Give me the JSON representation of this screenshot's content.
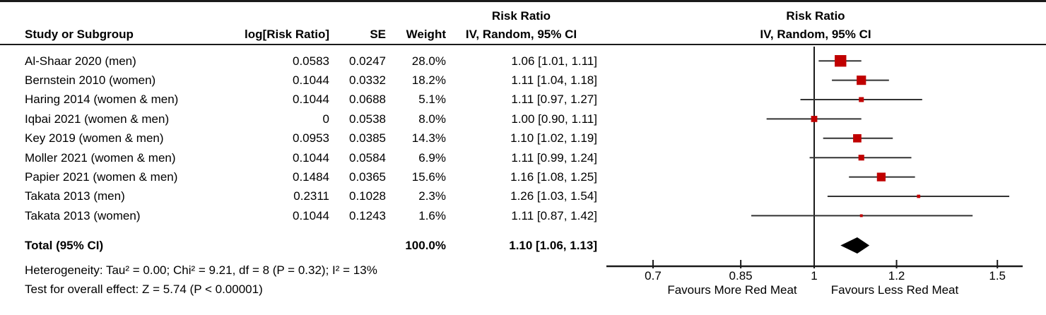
{
  "header": {
    "col_study": "Study or Subgroup",
    "col_log_rr": "log[Risk Ratio]",
    "col_se": "SE",
    "col_weight": "Weight",
    "ci_col_line1": "Risk Ratio",
    "ci_col_line2": "IV, Random, 95% CI",
    "plot_col_line1": "Risk Ratio",
    "plot_col_line2": "IV, Random, 95% CI"
  },
  "footnotes": {
    "heterogeneity": "Heterogeneity: Tau² = 0.00; Chi² = 9.21, df = 8 (P = 0.32); I² = 13%",
    "overall_effect": "Test for overall effect: Z = 5.74 (P < 0.00001)"
  },
  "chart_data": {
    "type": "forest",
    "x_scale": "log",
    "xlim": [
      0.63,
      1.59
    ],
    "null_line_value": 1,
    "axis_ticks": [
      0.7,
      0.85,
      1,
      1.2,
      1.5
    ],
    "axis_tick_labels": [
      "0.7",
      "0.85",
      "1",
      "1.2",
      "1.5"
    ],
    "favours_left": "Favours More Red Meat",
    "favours_right": "Favours Less Red Meat",
    "effect_measure": "Risk Ratio",
    "model": "IV, Random, 95% CI",
    "colors": {
      "marker": "#c00000",
      "ci_line": "#333333",
      "diamond": "#000000",
      "axis": "#1a1a1a"
    },
    "studies": [
      {
        "name": "Al-Shaar 2020 (men)",
        "log_rr": "0.0583",
        "se": "0.0247",
        "weight": "28.0%",
        "weight_pct": 28.0,
        "ci_label": "1.06 [1.01, 1.11]",
        "rr": 1.06,
        "ci_low": 1.01,
        "ci_high": 1.11
      },
      {
        "name": "Bernstein 2010 (women)",
        "log_rr": "0.1044",
        "se": "0.0332",
        "weight": "18.2%",
        "weight_pct": 18.2,
        "ci_label": "1.11 [1.04, 1.18]",
        "rr": 1.11,
        "ci_low": 1.04,
        "ci_high": 1.18
      },
      {
        "name": "Haring 2014 (women & men)",
        "log_rr": "0.1044",
        "se": "0.0688",
        "weight": "5.1%",
        "weight_pct": 5.1,
        "ci_label": "1.11 [0.97, 1.27]",
        "rr": 1.11,
        "ci_low": 0.97,
        "ci_high": 1.27
      },
      {
        "name": "Iqbai 2021 (women & men)",
        "log_rr": "0",
        "se": "0.0538",
        "weight": "8.0%",
        "weight_pct": 8.0,
        "ci_label": "1.00 [0.90, 1.11]",
        "rr": 1.0,
        "ci_low": 0.9,
        "ci_high": 1.11
      },
      {
        "name": "Key 2019 (women & men)",
        "log_rr": "0.0953",
        "se": "0.0385",
        "weight": "14.3%",
        "weight_pct": 14.3,
        "ci_label": "1.10 [1.02, 1.19]",
        "rr": 1.1,
        "ci_low": 1.02,
        "ci_high": 1.19
      },
      {
        "name": "Moller 2021 (women & men)",
        "log_rr": "0.1044",
        "se": "0.0584",
        "weight": "6.9%",
        "weight_pct": 6.9,
        "ci_label": "1.11 [0.99, 1.24]",
        "rr": 1.11,
        "ci_low": 0.99,
        "ci_high": 1.24
      },
      {
        "name": "Papier 2021 (women & men)",
        "log_rr": "0.1484",
        "se": "0.0365",
        "weight": "15.6%",
        "weight_pct": 15.6,
        "ci_label": "1.16 [1.08, 1.25]",
        "rr": 1.16,
        "ci_low": 1.08,
        "ci_high": 1.25
      },
      {
        "name": "Takata 2013 (men)",
        "log_rr": "0.2311",
        "se": "0.1028",
        "weight": "2.3%",
        "weight_pct": 2.3,
        "ci_label": "1.26 [1.03, 1.54]",
        "rr": 1.26,
        "ci_low": 1.03,
        "ci_high": 1.54
      },
      {
        "name": "Takata 2013 (women)",
        "log_rr": "0.1044",
        "se": "0.1243",
        "weight": "1.6%",
        "weight_pct": 1.6,
        "ci_label": "1.11 [0.87, 1.42]",
        "rr": 1.11,
        "ci_low": 0.87,
        "ci_high": 1.42
      }
    ],
    "total": {
      "label": "Total (95% CI)",
      "weight": "100.0%",
      "ci_label": "1.10 [1.06, 1.13]",
      "rr": 1.1,
      "ci_low": 1.06,
      "ci_high": 1.13
    }
  }
}
